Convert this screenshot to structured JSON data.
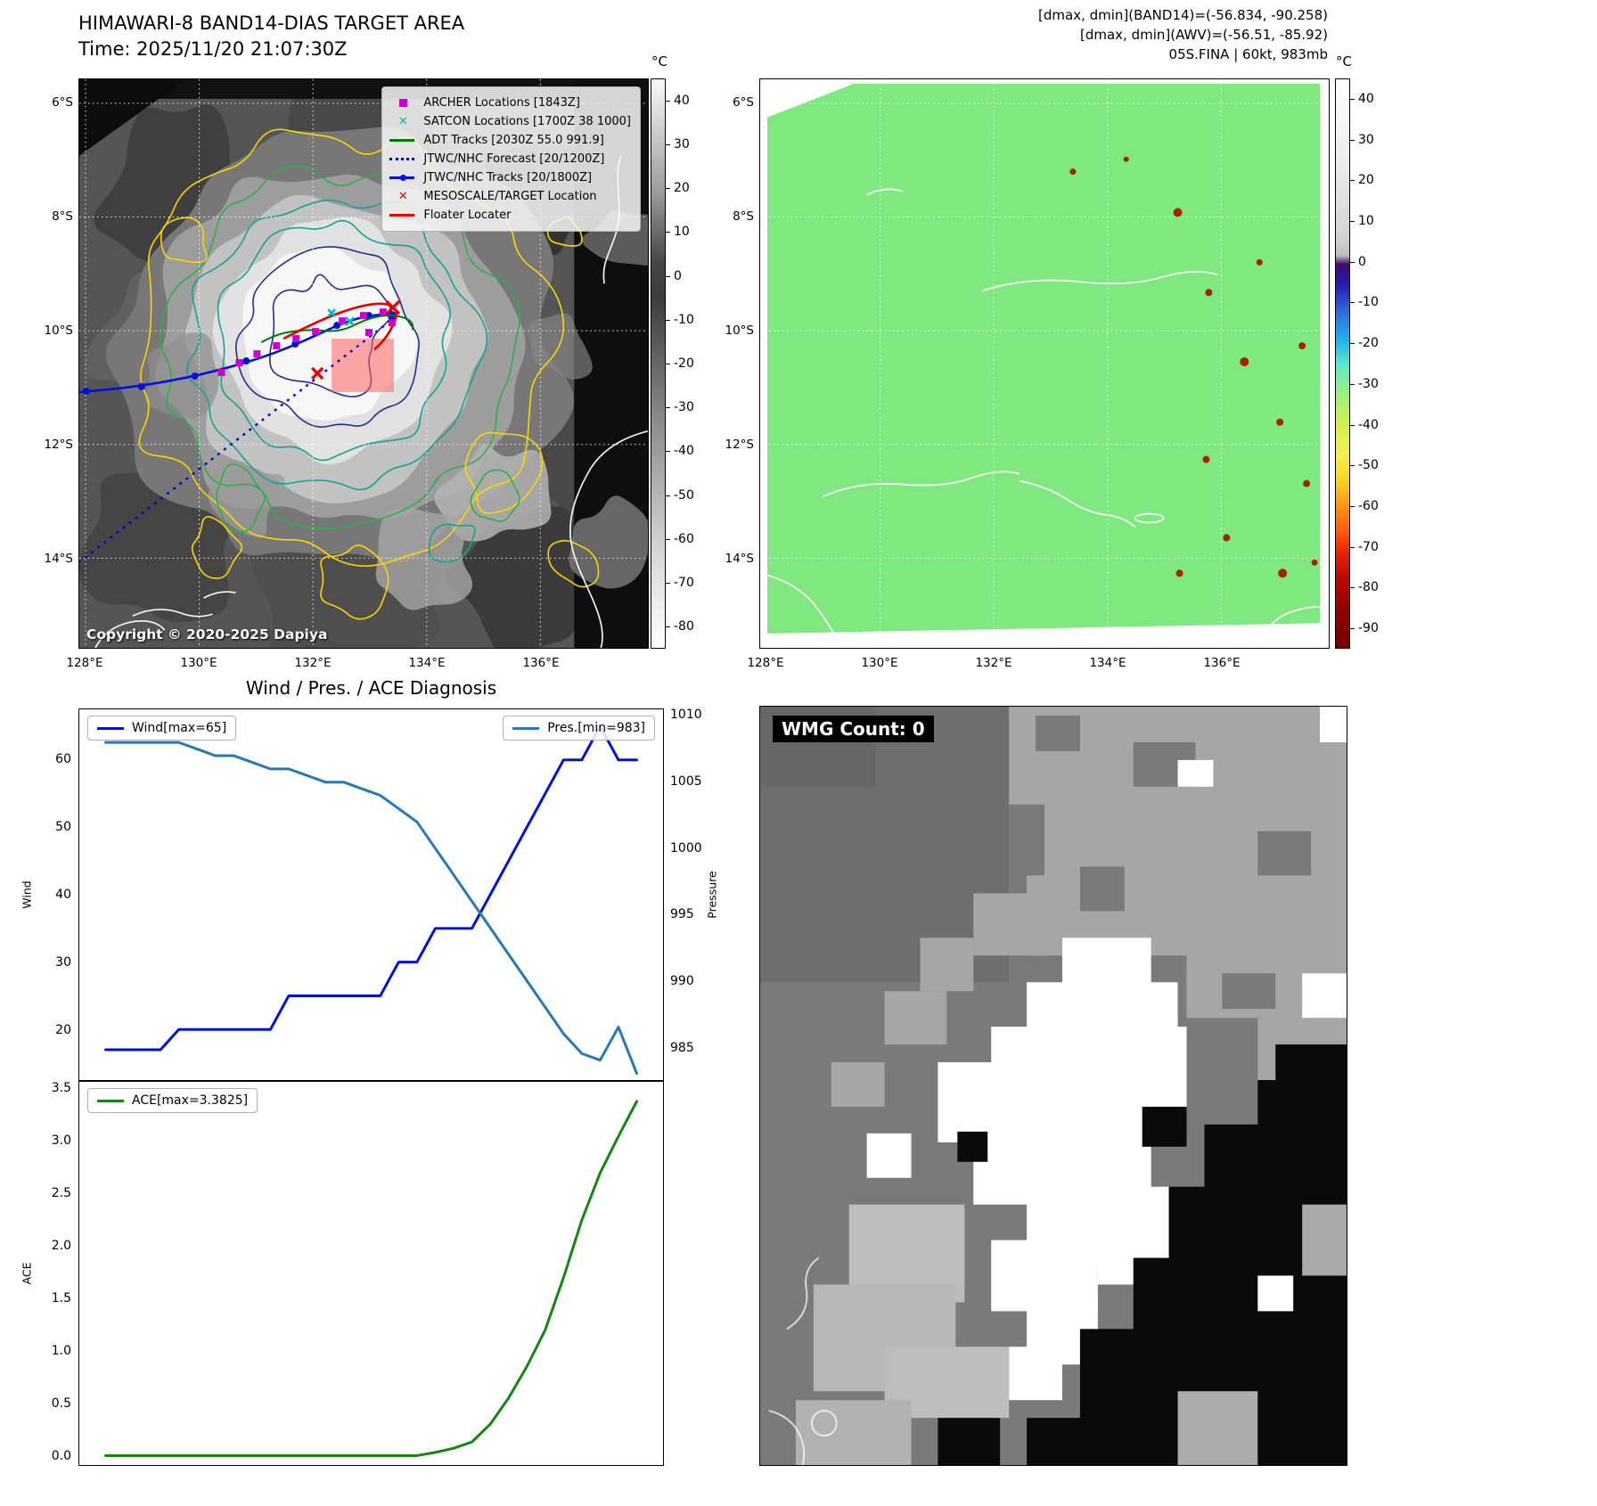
{
  "band14": {
    "title": "HIMAWARI-8 BAND14-DIAS TARGET AREA",
    "subtitle": "Time: 2025/11/20 21:07:30Z",
    "copyright": "Copyright © 2020-2025 Dapiya",
    "colorbar_unit": "°C",
    "colorbar_ticks": [
      "40",
      "30",
      "20",
      "10",
      "0",
      "-10",
      "-20",
      "-30",
      "-40",
      "-50",
      "-60",
      "-70",
      "-80"
    ],
    "lat_ticks": [
      "6°S",
      "8°S",
      "10°S",
      "12°S",
      "14°S"
    ],
    "lon_ticks": [
      "128°E",
      "130°E",
      "132°E",
      "134°E",
      "136°E"
    ],
    "legend": [
      {
        "label": "ARCHER Locations [1843Z]",
        "marker": "square",
        "color": "#c800c8"
      },
      {
        "label": "SATCON Locations [1700Z 38 1000]",
        "marker": "x",
        "color": "#00b8b8"
      },
      {
        "label": "ADT Tracks [2030Z 55.0 991.9]",
        "marker": "line",
        "color": "#007a00"
      },
      {
        "label": "JTWC/NHC Forecast [20/1200Z]",
        "marker": "dotted",
        "color": "#0000cc"
      },
      {
        "label": "JTWC/NHC Tracks [20/1800Z]",
        "marker": "line-dot",
        "color": "#0010dd"
      },
      {
        "label": "MESOSCALE/TARGET Location",
        "marker": "x",
        "color": "#e60000"
      },
      {
        "label": "Floater Locater",
        "marker": "line",
        "color": "#e60000"
      }
    ]
  },
  "awv": {
    "header_lines": [
      "[dmax, dmin](BAND14)=(-56.834, -90.258)",
      "[dmax, dmin](AWV)=(-56.51, -85.92)",
      "05S.FINA | 60kt, 983mb"
    ],
    "colorbar_unit": "°C",
    "colorbar_ticks": [
      "40",
      "30",
      "20",
      "10",
      "0",
      "-10",
      "-20",
      "-30",
      "-40",
      "-50",
      "-60",
      "-70",
      "-80",
      "-90"
    ],
    "lat_ticks": [
      "6°S",
      "8°S",
      "10°S",
      "12°S",
      "14°S"
    ],
    "lon_ticks": [
      "128°E",
      "130°E",
      "132°E",
      "134°E",
      "136°E"
    ]
  },
  "diagnosis": {
    "title": "Wind / Pres. / ACE Diagnosis",
    "wind_ylabel": "Wind",
    "pres_ylabel": "Pressure",
    "ace_ylabel": "ACE"
  },
  "wmg": {
    "label": "WMG Count: 0"
  },
  "chart_data": [
    {
      "type": "line",
      "title": "Wind / Pres. / ACE Diagnosis",
      "x_unit": "time step (unlabeled axis)",
      "left_ylabel": "Wind",
      "right_ylabel": "Pressure",
      "left_ylim": [
        12.5,
        67.5
      ],
      "right_ylim": [
        982.5,
        1010.5
      ],
      "left_ticks": [
        "20",
        "30",
        "40",
        "50",
        "60"
      ],
      "right_ticks": [
        "985",
        "990",
        "995",
        "1000",
        "1005",
        "1010"
      ],
      "grid": false,
      "legend_position": "top-left and top-right",
      "series": [
        {
          "name": "Wind[max=65]",
          "axis": "left",
          "color": "#0010dd",
          "values": [
            17,
            17,
            17,
            17,
            20,
            20,
            20,
            20,
            20,
            20,
            25,
            25,
            25,
            25,
            25,
            25,
            30,
            30,
            35,
            35,
            35,
            40,
            45,
            50,
            55,
            60,
            60,
            65,
            60,
            60
          ]
        },
        {
          "name": "Pres.[min=983]",
          "axis": "right",
          "color": "#2878b4",
          "values": [
            1008,
            1008,
            1008,
            1008,
            1008,
            1007.5,
            1007,
            1007,
            1006.5,
            1006,
            1006,
            1005.5,
            1005,
            1005,
            1004.5,
            1004,
            1003,
            1002,
            1000,
            998,
            996,
            994,
            992,
            990,
            988,
            986,
            984.5,
            984,
            986.5,
            983
          ]
        }
      ]
    },
    {
      "type": "line",
      "title": "ACE",
      "x_unit": "time step (unlabeled axis)",
      "left_ylabel": "ACE",
      "left_ylim": [
        -0.09,
        3.57
      ],
      "left_ticks": [
        "0.0",
        "0.5",
        "1.0",
        "1.5",
        "2.0",
        "2.5",
        "3.0",
        "3.5"
      ],
      "grid": false,
      "legend_position": "top-left",
      "series": [
        {
          "name": "ACE[max=3.3825]",
          "axis": "left",
          "color": "#158515",
          "values": [
            0,
            0,
            0,
            0,
            0,
            0,
            0,
            0,
            0,
            0,
            0,
            0,
            0,
            0,
            0,
            0,
            0,
            0,
            0.03,
            0.07,
            0.13,
            0.3,
            0.55,
            0.85,
            1.2,
            1.7,
            2.25,
            2.7,
            3.05,
            3.3825
          ]
        }
      ]
    }
  ]
}
